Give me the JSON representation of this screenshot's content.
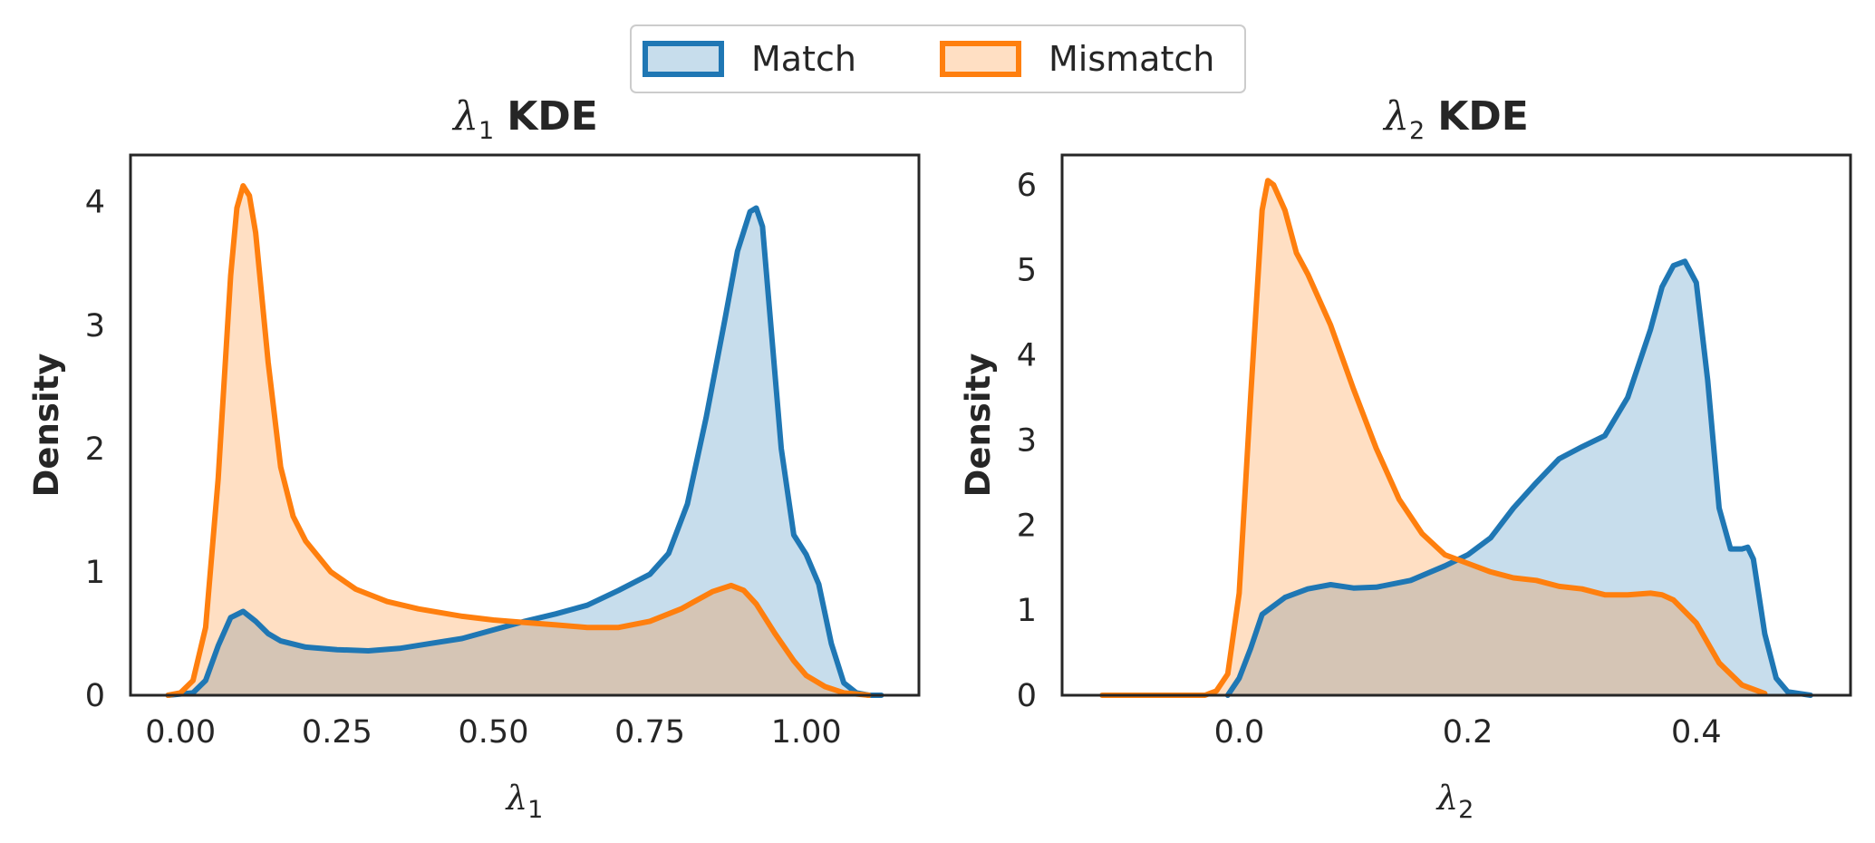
{
  "chart_data": [
    {
      "type": "area",
      "title": "λ1 KDE",
      "title_symbol": "λ",
      "title_subscript": "1",
      "title_text": "KDE",
      "xlabel_symbol": "λ",
      "xlabel_subscript": "1",
      "ylabel": "Density",
      "xlim": [
        -0.08,
        1.18
      ],
      "ylim": [
        0,
        4.38
      ],
      "xticks": [
        0.0,
        0.25,
        0.5,
        0.75,
        1.0
      ],
      "xtick_labels": [
        "0.00",
        "0.25",
        "0.50",
        "0.75",
        "1.00"
      ],
      "yticks": [
        0,
        1,
        2,
        3,
        4
      ],
      "ytick_labels": [
        "0",
        "1",
        "2",
        "3",
        "4"
      ],
      "series": [
        {
          "name": "Match",
          "color": "#1f77b4",
          "x": [
            -0.02,
            0.02,
            0.04,
            0.06,
            0.08,
            0.1,
            0.12,
            0.14,
            0.16,
            0.2,
            0.25,
            0.3,
            0.35,
            0.4,
            0.45,
            0.5,
            0.55,
            0.6,
            0.65,
            0.7,
            0.75,
            0.78,
            0.81,
            0.84,
            0.87,
            0.89,
            0.91,
            0.92,
            0.93,
            0.94,
            0.96,
            0.98,
            1.0,
            1.02,
            1.04,
            1.06,
            1.08,
            1.1,
            1.12
          ],
          "y": [
            0.0,
            0.02,
            0.12,
            0.4,
            0.63,
            0.68,
            0.6,
            0.5,
            0.44,
            0.39,
            0.37,
            0.36,
            0.38,
            0.42,
            0.46,
            0.53,
            0.6,
            0.66,
            0.73,
            0.85,
            0.98,
            1.15,
            1.55,
            2.25,
            3.05,
            3.6,
            3.92,
            3.95,
            3.8,
            3.2,
            2.0,
            1.3,
            1.14,
            0.9,
            0.42,
            0.1,
            0.02,
            0.0,
            0.0
          ]
        },
        {
          "name": "Mismatch",
          "color": "#ff7f0e",
          "x": [
            -0.02,
            0.0,
            0.02,
            0.04,
            0.06,
            0.08,
            0.09,
            0.1,
            0.11,
            0.12,
            0.14,
            0.16,
            0.18,
            0.2,
            0.24,
            0.28,
            0.33,
            0.38,
            0.45,
            0.5,
            0.55,
            0.6,
            0.65,
            0.7,
            0.75,
            0.8,
            0.85,
            0.88,
            0.9,
            0.92,
            0.95,
            0.98,
            1.0,
            1.03,
            1.06,
            1.1
          ],
          "y": [
            0.0,
            0.02,
            0.12,
            0.55,
            1.75,
            3.4,
            3.95,
            4.13,
            4.05,
            3.75,
            2.7,
            1.85,
            1.45,
            1.25,
            1.0,
            0.86,
            0.76,
            0.7,
            0.64,
            0.61,
            0.59,
            0.57,
            0.55,
            0.55,
            0.6,
            0.7,
            0.84,
            0.89,
            0.85,
            0.74,
            0.5,
            0.28,
            0.16,
            0.07,
            0.02,
            0.0
          ]
        }
      ]
    },
    {
      "type": "area",
      "title": "λ2 KDE",
      "title_symbol": "λ",
      "title_subscript": "2",
      "title_text": "KDE",
      "xlabel_symbol": "λ",
      "xlabel_subscript": "2",
      "ylabel": "Density",
      "xlim": [
        -0.155,
        0.535
      ],
      "ylim": [
        0,
        6.35
      ],
      "xticks": [
        0.0,
        0.2,
        0.4
      ],
      "xtick_labels": [
        "0.0",
        "0.2",
        "0.4"
      ],
      "yticks": [
        0,
        1,
        2,
        3,
        4,
        5,
        6
      ],
      "ytick_labels": [
        "0",
        "1",
        "2",
        "3",
        "4",
        "5",
        "6"
      ],
      "series": [
        {
          "name": "Match",
          "color": "#1f77b4",
          "x": [
            -0.01,
            0.0,
            0.01,
            0.02,
            0.04,
            0.06,
            0.08,
            0.1,
            0.12,
            0.15,
            0.18,
            0.2,
            0.22,
            0.24,
            0.26,
            0.28,
            0.3,
            0.32,
            0.34,
            0.36,
            0.37,
            0.38,
            0.39,
            0.4,
            0.41,
            0.42,
            0.43,
            0.44,
            0.445,
            0.45,
            0.46,
            0.47,
            0.48,
            0.5
          ],
          "y": [
            0.0,
            0.2,
            0.55,
            0.95,
            1.15,
            1.25,
            1.3,
            1.26,
            1.27,
            1.35,
            1.52,
            1.65,
            1.85,
            2.2,
            2.5,
            2.78,
            2.92,
            3.05,
            3.5,
            4.3,
            4.8,
            5.05,
            5.1,
            4.85,
            3.7,
            2.2,
            1.72,
            1.72,
            1.74,
            1.6,
            0.72,
            0.2,
            0.04,
            0.0
          ]
        },
        {
          "name": "Mismatch",
          "color": "#ff7f0e",
          "x": [
            -0.12,
            -0.06,
            -0.03,
            -0.02,
            -0.01,
            0.0,
            0.01,
            0.02,
            0.025,
            0.03,
            0.04,
            0.05,
            0.06,
            0.08,
            0.1,
            0.12,
            0.14,
            0.16,
            0.18,
            0.2,
            0.22,
            0.24,
            0.26,
            0.28,
            0.3,
            0.32,
            0.34,
            0.36,
            0.37,
            0.38,
            0.4,
            0.42,
            0.44,
            0.46
          ],
          "y": [
            0.0,
            0.0,
            0.0,
            0.05,
            0.25,
            1.2,
            3.5,
            5.7,
            6.05,
            6.0,
            5.7,
            5.2,
            4.95,
            4.35,
            3.6,
            2.9,
            2.3,
            1.9,
            1.65,
            1.55,
            1.45,
            1.38,
            1.35,
            1.28,
            1.25,
            1.18,
            1.18,
            1.2,
            1.18,
            1.12,
            0.85,
            0.38,
            0.12,
            0.02
          ]
        }
      ]
    }
  ],
  "legend": {
    "items": [
      {
        "label": "Match",
        "color": "#1f77b4"
      },
      {
        "label": "Mismatch",
        "color": "#ff7f0e"
      }
    ]
  }
}
